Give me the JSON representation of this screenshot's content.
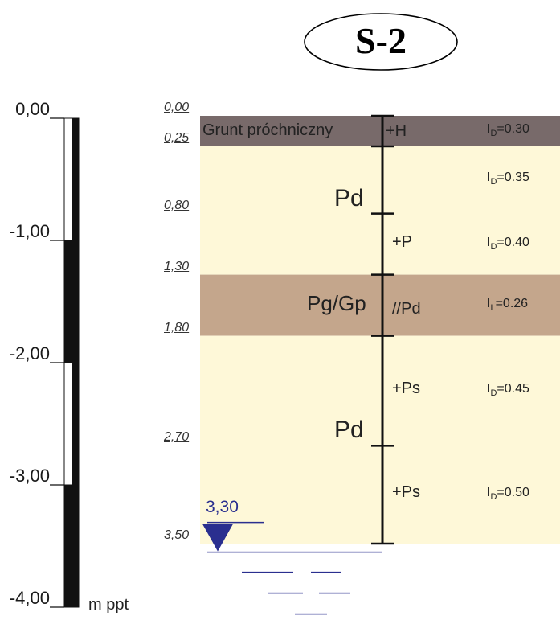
{
  "well": {
    "name": "S-2"
  },
  "scale": {
    "unit": "m ppt",
    "ticks": [
      {
        "value": 0,
        "label": "0,00"
      },
      {
        "value": -1,
        "label": "-1,00"
      },
      {
        "value": -2,
        "label": "-2,00"
      },
      {
        "value": -3,
        "label": "-3,00"
      },
      {
        "value": -4,
        "label": "-4,00"
      }
    ]
  },
  "boundaries": [
    {
      "depth": 0.0,
      "label": "0,00"
    },
    {
      "depth": 0.25,
      "label": "0,25"
    },
    {
      "depth": 0.8,
      "label": "0,80"
    },
    {
      "depth": 1.3,
      "label": "1,30"
    },
    {
      "depth": 1.8,
      "label": "1,80"
    },
    {
      "depth": 2.7,
      "label": "2,70"
    },
    {
      "depth": 3.5,
      "label": "3,50"
    }
  ],
  "layers": [
    {
      "top": 0.0,
      "bottom": 0.25,
      "color": "#786a6a",
      "name": "Grunt próchniczny",
      "type_label": "+H"
    },
    {
      "top": 0.25,
      "bottom": 1.3,
      "color": "#fef8d8",
      "name": "Pd",
      "type_label": ""
    },
    {
      "top": 1.3,
      "bottom": 1.8,
      "color": "#c4a68c",
      "name": "Pg/Gp",
      "type_label": "//Pd"
    },
    {
      "top": 1.8,
      "bottom": 3.5,
      "color": "#fef8d8",
      "name": "Pd",
      "type_label": ""
    }
  ],
  "sublayers": [
    {
      "top": 0.25,
      "bottom": 0.8,
      "label": ""
    },
    {
      "top": 0.8,
      "bottom": 1.3,
      "label": "+P"
    },
    {
      "top": 1.8,
      "bottom": 2.7,
      "label": "+Ps"
    },
    {
      "top": 2.7,
      "bottom": 3.5,
      "label": "+Ps"
    }
  ],
  "indices": [
    {
      "depth": 0.125,
      "symbol": "I",
      "sub": "D",
      "value": "=0.30"
    },
    {
      "depth": 0.52,
      "symbol": "I",
      "sub": "D",
      "value": "=0.35"
    },
    {
      "depth": 1.05,
      "symbol": "I",
      "sub": "D",
      "value": "=0.40"
    },
    {
      "depth": 1.55,
      "symbol": "I",
      "sub": "L",
      "value": "=0.26"
    },
    {
      "depth": 2.25,
      "symbol": "I",
      "sub": "D",
      "value": "=0.45"
    },
    {
      "depth": 3.1,
      "symbol": "I",
      "sub": "D",
      "value": "=0.50"
    }
  ],
  "groundwater": {
    "depth": 3.3,
    "label": "3,30",
    "color": "#2a2f8f"
  }
}
